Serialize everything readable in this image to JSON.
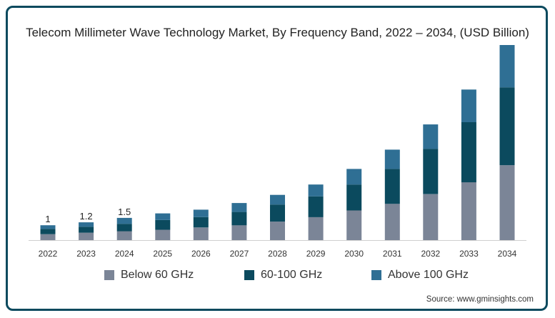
{
  "chart_data": {
    "type": "bar",
    "stacked": true,
    "title": "Telecom Millimeter Wave Technology Market, By Frequency Band, 2022 – 2034, (USD Billion)",
    "xlabel": "",
    "ylabel": "",
    "categories": [
      "2022",
      "2023",
      "2024",
      "2025",
      "2026",
      "2027",
      "2028",
      "2029",
      "2030",
      "2031",
      "2032",
      "2033",
      "2034"
    ],
    "series": [
      {
        "name": "Below 60 GHz",
        "color": "#7b8597",
        "values": [
          0.4,
          0.5,
          0.6,
          0.7,
          0.85,
          1.0,
          1.25,
          1.55,
          2.0,
          2.45,
          3.1,
          3.9,
          5.05
        ]
      },
      {
        "name": "60-100 GHz",
        "color": "#0b4a5e",
        "values": [
          0.35,
          0.4,
          0.5,
          0.65,
          0.7,
          0.9,
          1.15,
          1.4,
          1.75,
          2.35,
          3.05,
          4.05,
          5.25
        ]
      },
      {
        "name": "Above 100 GHz",
        "color": "#2f6f94",
        "values": [
          0.25,
          0.3,
          0.4,
          0.45,
          0.5,
          0.6,
          0.65,
          0.8,
          1.05,
          1.3,
          1.65,
          2.2,
          2.85
        ]
      }
    ],
    "data_labels": {
      "2022": "1",
      "2023": "1.2",
      "2024": "1.5"
    },
    "ylim": [
      0,
      13.2
    ],
    "grid": false,
    "legend_position": "bottom"
  },
  "source": "Source: www.gminsights.com"
}
